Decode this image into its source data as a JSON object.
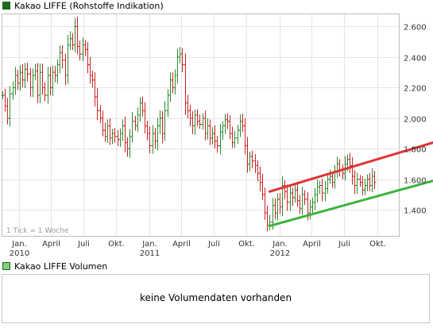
{
  "chart_data": [
    {
      "type": "ohlc",
      "title": "Kakao LIFFE (Rohstoffe Indikation)",
      "note": "1 Tick = 1 Woche",
      "yticks": [
        1400,
        1600,
        1800,
        2000,
        2200,
        2400,
        2600
      ],
      "ytick_labels": [
        "1.400",
        "1.600",
        "1.800",
        "2.000",
        "2.200",
        "2.400",
        "2.600"
      ],
      "ylim": [
        1230,
        2680
      ],
      "xlim": [
        "2009-11-16",
        "2012-12-01"
      ],
      "x_ticks": [
        {
          "date": "2010-01-01",
          "label": "Jan.",
          "year": "2010"
        },
        {
          "date": "2010-04-01",
          "label": "April",
          "year": ""
        },
        {
          "date": "2010-07-01",
          "label": "Juli",
          "year": ""
        },
        {
          "date": "2010-10-01",
          "label": "Okt.",
          "year": ""
        },
        {
          "date": "2011-01-01",
          "label": "Jan.",
          "year": "2011"
        },
        {
          "date": "2011-04-01",
          "label": "April",
          "year": ""
        },
        {
          "date": "2011-07-01",
          "label": "Juli",
          "year": ""
        },
        {
          "date": "2011-10-01",
          "label": "Okt.",
          "year": ""
        },
        {
          "date": "2012-01-01",
          "label": "Jan.",
          "year": "2012"
        },
        {
          "date": "2012-04-01",
          "label": "April",
          "year": ""
        },
        {
          "date": "2012-07-01",
          "label": "Juli",
          "year": ""
        },
        {
          "date": "2012-10-01",
          "label": "Okt.",
          "year": ""
        }
      ],
      "grid": true,
      "up_color": "#2e8b2e",
      "down_color": "#cc2222",
      "start_date": "2009-11-16",
      "closes": [
        2150,
        2080,
        2000,
        2160,
        2200,
        2280,
        2230,
        2300,
        2250,
        2320,
        2290,
        2200,
        2280,
        2310,
        2150,
        2300,
        2200,
        2150,
        2280,
        2200,
        2300,
        2280,
        2350,
        2430,
        2380,
        2280,
        2480,
        2520,
        2480,
        2600,
        2470,
        2420,
        2480,
        2450,
        2350,
        2280,
        2250,
        2140,
        2050,
        2000,
        1920,
        1880,
        1950,
        1870,
        1900,
        1880,
        1860,
        1900,
        1950,
        1840,
        1800,
        1880,
        1980,
        1950,
        2020,
        2100,
        2050,
        1950,
        1900,
        1820,
        1900,
        1850,
        1950,
        2000,
        1900,
        2050,
        2150,
        2250,
        2200,
        2280,
        2400,
        2420,
        2350,
        2100,
        2050,
        2000,
        1950,
        2020,
        1980,
        1960,
        2000,
        1900,
        1950,
        1870,
        1900,
        1850,
        1820,
        1910,
        1950,
        1990,
        1980,
        1900,
        1840,
        1870,
        1920,
        1980,
        1950,
        1820,
        1700,
        1750,
        1720,
        1690,
        1640,
        1580,
        1500,
        1380,
        1300,
        1320,
        1430,
        1380,
        1470,
        1420,
        1560,
        1520,
        1450,
        1510,
        1480,
        1530,
        1460,
        1410,
        1500,
        1470,
        1380,
        1420,
        1450,
        1500,
        1550,
        1560,
        1510,
        1540,
        1600,
        1620,
        1580,
        1650,
        1700,
        1660,
        1640,
        1700,
        1730,
        1690,
        1620,
        1560,
        1600,
        1580,
        1530,
        1560,
        1600,
        1560,
        1620,
        1580
      ],
      "trendlines": [
        {
          "color": "#e03333",
          "start": {
            "date": "2011-12-05",
            "value": 1520
          },
          "end": {
            "date": "2012-12-01",
            "value": 1830
          }
        },
        {
          "color": "#3cb43c",
          "start": {
            "date": "2011-12-05",
            "value": 1295
          },
          "end": {
            "date": "2012-12-01",
            "value": 1580
          }
        }
      ]
    },
    {
      "type": "bar",
      "title": "Kakao LIFFE Volumen",
      "values": [],
      "message": "keine Volumendaten vorhanden"
    }
  ]
}
